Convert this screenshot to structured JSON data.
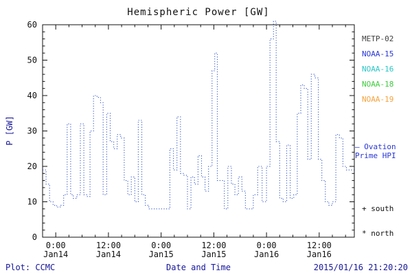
{
  "chart_data": {
    "type": "line",
    "title": "Hemispheric Power [GW]",
    "xlabel": "Date and Time",
    "ylabel": "P [GW]",
    "ylim": [
      0,
      60
    ],
    "xlim_hours": [
      -3,
      68
    ],
    "grid": false,
    "legend_position": "right",
    "y_ticks": [
      0,
      10,
      20,
      30,
      40,
      50,
      60
    ],
    "x_ticks": [
      {
        "hour": 0,
        "time": "0:00",
        "date": "Jan14"
      },
      {
        "hour": 12,
        "time": "12:00",
        "date": "Jan14"
      },
      {
        "hour": 24,
        "time": "0:00",
        "date": "Jan15"
      },
      {
        "hour": 36,
        "time": "12:00",
        "date": "Jan15"
      },
      {
        "hour": 48,
        "time": "0:00",
        "date": "Jan16"
      },
      {
        "hour": 60,
        "time": "12:00",
        "date": "Jan16"
      }
    ],
    "series": [
      {
        "name": "Ovation Prime HPI",
        "color": "#3355cc",
        "line_style": "dotted-step",
        "x": [
          -3.0,
          -2.2,
          -1.4,
          -0.6,
          0.2,
          1.0,
          1.8,
          2.6,
          3.4,
          4.0,
          4.8,
          5.6,
          6.4,
          7.2,
          7.8,
          8.6,
          9.4,
          10.2,
          10.8,
          11.6,
          12.4,
          13.2,
          14.0,
          14.8,
          15.6,
          16.4,
          17.2,
          18.0,
          18.8,
          19.6,
          20.4,
          21.2,
          22.0,
          23.0,
          24.0,
          25.0,
          26.0,
          26.8,
          27.6,
          28.4,
          29.2,
          30.0,
          30.8,
          31.6,
          32.4,
          33.2,
          34.0,
          34.8,
          35.6,
          36.2,
          36.8,
          37.6,
          38.4,
          39.2,
          40.0,
          40.8,
          41.6,
          42.4,
          43.2,
          44.0,
          45.0,
          46.0,
          47.0,
          48.0,
          48.8,
          49.6,
          50.2,
          51.0,
          51.8,
          52.6,
          53.4,
          54.2,
          55.0,
          55.8,
          56.6,
          57.4,
          58.2,
          59.0,
          59.8,
          60.6,
          61.4,
          62.2,
          63.0,
          63.8,
          64.6,
          65.4,
          66.2,
          67.0,
          68.0
        ],
        "y": [
          19,
          15,
          10,
          9,
          8.5,
          9,
          12,
          32,
          12,
          11,
          12,
          32,
          12,
          11.5,
          30,
          40,
          39.5,
          38,
          12,
          35,
          27,
          25,
          29,
          28,
          16,
          12,
          17,
          10,
          33,
          12,
          9,
          8,
          8,
          8,
          8,
          8,
          25,
          19,
          34,
          18,
          17.5,
          8,
          17,
          15,
          23,
          17,
          13,
          20,
          47,
          52,
          16,
          16,
          8,
          20,
          15,
          12,
          17,
          13,
          8,
          8,
          12,
          20,
          10,
          20,
          56,
          61,
          27,
          11,
          10,
          26,
          11,
          12,
          35,
          43,
          42,
          22,
          46,
          45,
          22,
          16,
          10,
          9,
          10,
          29,
          28,
          20,
          19,
          19,
          19
        ]
      }
    ]
  },
  "legend": {
    "satellites": [
      {
        "name": "METP-02",
        "color": "#404040"
      },
      {
        "name": "NOAA-15",
        "color": "#2936d6"
      },
      {
        "name": "NOAA-16",
        "color": "#2bc6c6"
      },
      {
        "name": "NOAA-18",
        "color": "#3ecb3e"
      },
      {
        "name": "NOAA-19",
        "color": "#f5a23c"
      }
    ],
    "ovation_line1": "— Ovation",
    "ovation_line2": "Prime HPI",
    "ovation_color": "#2936d6",
    "south_label": "+ south",
    "north_label": "* north"
  },
  "footer": {
    "plot_credit": "Plot: CCMC",
    "timestamp": "2015/01/16 21:20:20"
  }
}
